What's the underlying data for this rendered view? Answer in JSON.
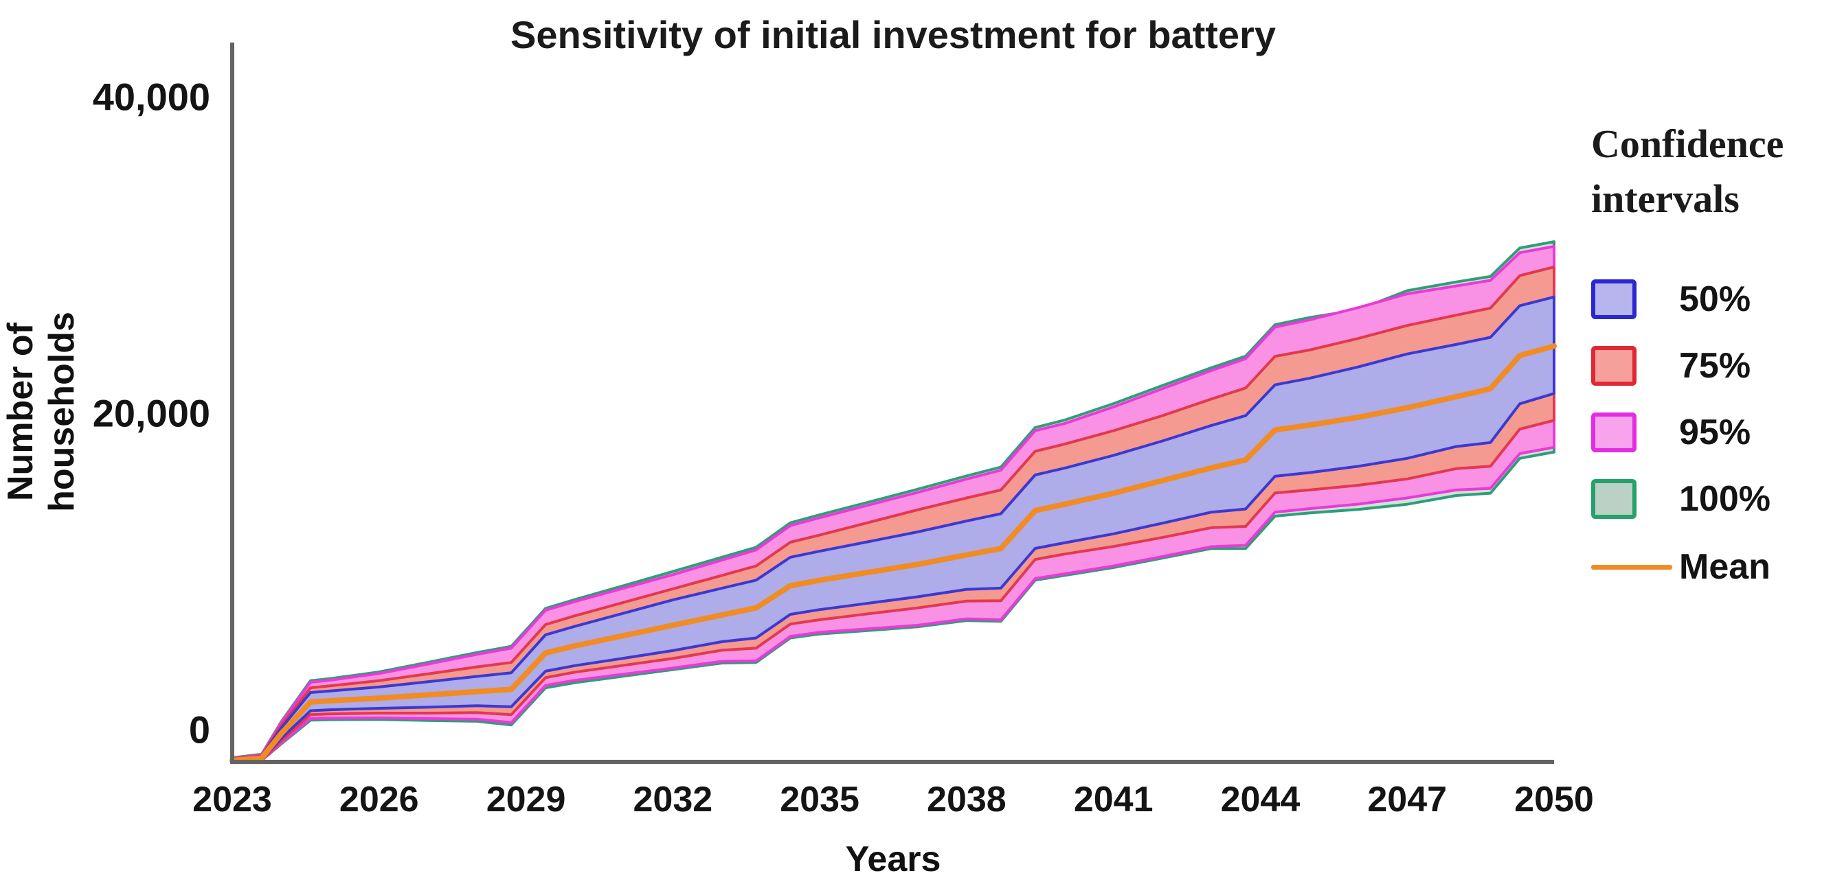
{
  "title": "Sensitivity of initial investment for battery",
  "axes": {
    "x_label": "Years",
    "y_label": "Number of households",
    "x_tick_labels": [
      "2023",
      "2026",
      "2029",
      "2032",
      "2035",
      "2038",
      "2041",
      "2044",
      "2047",
      "2050"
    ],
    "y_tick_labels": [
      "0",
      "20,000",
      "40,000"
    ]
  },
  "legend": {
    "title_line1": "Confidence",
    "title_line2": "intervals",
    "items": [
      {
        "label": "50%",
        "kind": "swatch",
        "fill": "#b7b5ee",
        "border": "#2b28d2"
      },
      {
        "label": "75%",
        "kind": "swatch",
        "fill": "#f5a09a",
        "border": "#e02834"
      },
      {
        "label": "95%",
        "kind": "swatch",
        "fill": "#f7a4ec",
        "border": "#e42ce0"
      },
      {
        "label": "100%",
        "kind": "swatch",
        "fill": "#bcd1c5",
        "border": "#27a06c"
      },
      {
        "label": "Mean",
        "kind": "line",
        "color": "#f18c25"
      }
    ]
  },
  "colors": {
    "axis": "#636363",
    "mean_line": "#f18c25",
    "band50_fill": "#aeace9",
    "band50_border": "#3c38d2",
    "band75_fill": "#f59a90",
    "band75_border": "#e1394f",
    "band95_fill": "#f992e4",
    "band95_border": "#e93ad8",
    "band100_fill": "#cfe2d7",
    "band100_border": "#2f9e78"
  },
  "chart_data": {
    "type": "area",
    "title": "Sensitivity of initial investment for battery",
    "xlabel": "Years",
    "ylabel": "Number of households",
    "xlim": [
      2023,
      2050
    ],
    "ylim": [
      -2100,
      43300
    ],
    "grid": false,
    "legend_position": "right",
    "x_ticks": [
      2023,
      2026,
      2029,
      2032,
      2035,
      2038,
      2041,
      2044,
      2047,
      2050
    ],
    "y_ticks": [
      0,
      20000,
      40000
    ],
    "x": [
      2023,
      2023.6,
      2024,
      2024.6,
      2025,
      2026,
      2027,
      2028,
      2028.7,
      2029.4,
      2030,
      2031,
      2032,
      2033,
      2033.7,
      2034.4,
      2035,
      2036,
      2037,
      2038,
      2038.7,
      2039.4,
      2040,
      2041,
      2042,
      2043,
      2043.7,
      2044.3,
      2045,
      2046,
      2047,
      2048,
      2048.7,
      2049.3,
      2050
    ],
    "bands": [
      {
        "name": "100%",
        "lower": [
          -2180,
          -2100,
          -950,
          550,
          580,
          600,
          530,
          480,
          250,
          2600,
          2920,
          3330,
          3750,
          4160,
          4200,
          5750,
          6000,
          6220,
          6450,
          6850,
          6800,
          9400,
          9700,
          10200,
          10800,
          11400,
          11400,
          13450,
          13650,
          13870,
          14200,
          14750,
          14900,
          17100,
          17500
        ],
        "upper": [
          -1820,
          -1600,
          450,
          3050,
          3180,
          3600,
          4210,
          4830,
          5220,
          7620,
          8180,
          9060,
          9950,
          10850,
          11480,
          13030,
          13530,
          14340,
          15150,
          15990,
          16550,
          19050,
          19520,
          20560,
          21700,
          22830,
          23560,
          25550,
          26000,
          26500,
          27700,
          28250,
          28600,
          30400,
          30800
        ]
      },
      {
        "name": "95%",
        "lower": [
          -2150,
          -2050,
          -900,
          650,
          680,
          700,
          650,
          610,
          400,
          2750,
          3070,
          3460,
          3850,
          4270,
          4300,
          5850,
          6110,
          6330,
          6550,
          6960,
          6900,
          9500,
          9800,
          10300,
          10900,
          11520,
          11600,
          13700,
          13920,
          14210,
          14600,
          15100,
          15200,
          17400,
          17800
        ],
        "upper": [
          -1850,
          -1650,
          400,
          2950,
          3080,
          3500,
          4100,
          4710,
          5100,
          7500,
          8050,
          8900,
          9750,
          10670,
          11310,
          12850,
          13350,
          14150,
          14950,
          15790,
          16350,
          18850,
          19300,
          20350,
          21500,
          22650,
          23400,
          25400,
          25850,
          26630,
          27500,
          28000,
          28350,
          30100,
          30500
        ]
      },
      {
        "name": "75%",
        "lower": [
          -2120,
          -2000,
          -750,
          900,
          950,
          1000,
          1000,
          1030,
          900,
          3240,
          3590,
          4020,
          4450,
          4970,
          5100,
          6630,
          6900,
          7280,
          7650,
          8080,
          8100,
          10710,
          11050,
          11530,
          12100,
          12720,
          12800,
          14910,
          15100,
          15400,
          15800,
          16450,
          16600,
          18950,
          19500
        ],
        "upper": [
          -1880,
          -1700,
          200,
          2600,
          2720,
          3050,
          3480,
          3920,
          4200,
          6600,
          7150,
          8000,
          8850,
          9700,
          10300,
          11800,
          12250,
          13050,
          13850,
          14600,
          15100,
          17550,
          18000,
          18850,
          19800,
          20850,
          21550,
          23550,
          23950,
          24680,
          25500,
          26150,
          26600,
          28650,
          29200
        ]
      },
      {
        "name": "50%",
        "lower": [
          -2080,
          -1950,
          -600,
          1150,
          1210,
          1300,
          1370,
          1460,
          1400,
          3650,
          4000,
          4470,
          4950,
          5510,
          5750,
          7240,
          7540,
          7950,
          8350,
          8820,
          8900,
          11410,
          11760,
          12330,
          13000,
          13700,
          13900,
          15970,
          16200,
          16600,
          17100,
          17850,
          18100,
          20550,
          21200
        ],
        "upper": [
          -1920,
          -1750,
          50,
          2300,
          2400,
          2650,
          2980,
          3320,
          3550,
          5950,
          6480,
          7320,
          8150,
          8890,
          9400,
          10850,
          11230,
          11840,
          12450,
          13140,
          13600,
          16050,
          16480,
          17290,
          18200,
          19180,
          19800,
          21750,
          22160,
          22880,
          23700,
          24300,
          24750,
          26750,
          27300
        ]
      }
    ],
    "series": [
      {
        "name": "Mean",
        "values": [
          -2000,
          -1850,
          -300,
          1700,
          1780,
          1950,
          2150,
          2360,
          2500,
          4800,
          5250,
          5900,
          6550,
          7200,
          7650,
          9050,
          9400,
          9900,
          10400,
          11000,
          11400,
          13800,
          14200,
          14900,
          15700,
          16500,
          17000,
          18900,
          19200,
          19700,
          20300,
          21000,
          21500,
          23600,
          24200
        ]
      }
    ]
  }
}
